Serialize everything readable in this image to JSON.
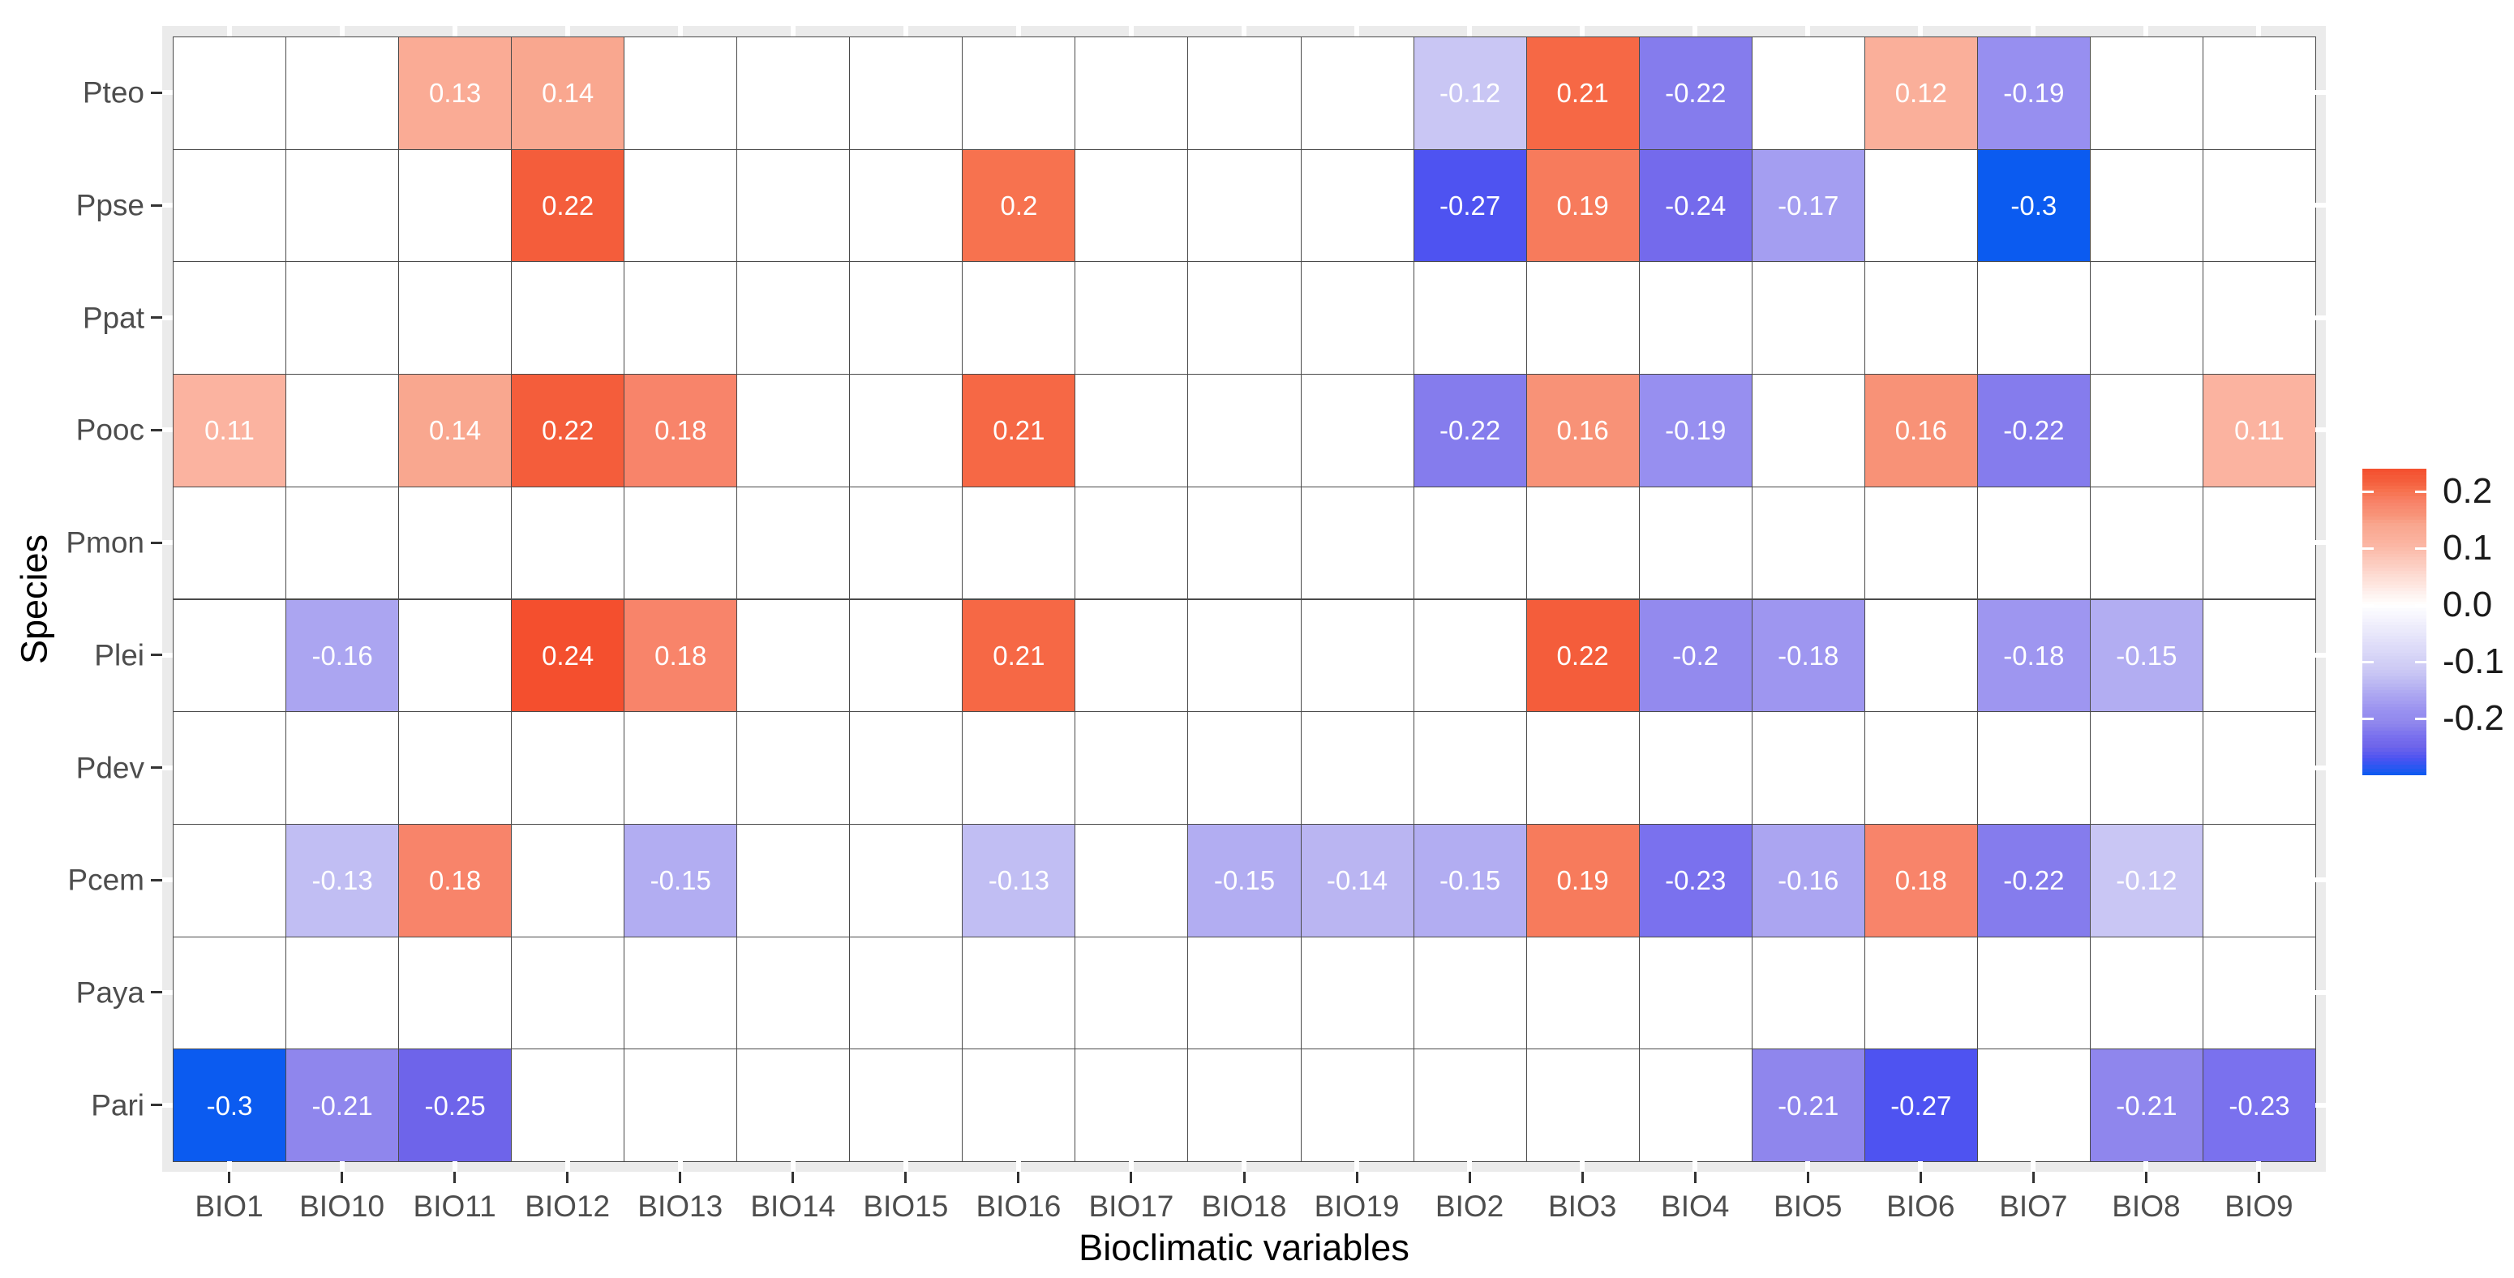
{
  "chart_data": {
    "type": "heatmap",
    "xlabel": "Bioclimatic variables",
    "ylabel": "Species",
    "x_categories": [
      "BIO1",
      "BIO10",
      "BIO11",
      "BIO12",
      "BIO13",
      "BIO14",
      "BIO15",
      "BIO16",
      "BIO17",
      "BIO18",
      "BIO19",
      "BIO2",
      "BIO3",
      "BIO4",
      "BIO5",
      "BIO6",
      "BIO7",
      "BIO8",
      "BIO9"
    ],
    "y_categories": [
      "Pteo",
      "Ppse",
      "Ppat",
      "Pooc",
      "Pmon",
      "Plei",
      "Pdev",
      "Pcem",
      "Paya",
      "Pari"
    ],
    "values": [
      [
        null,
        null,
        0.13,
        0.14,
        null,
        null,
        null,
        null,
        null,
        null,
        null,
        -0.12,
        0.21,
        -0.22,
        null,
        0.12,
        -0.19,
        null,
        null
      ],
      [
        null,
        null,
        null,
        0.22,
        null,
        null,
        null,
        0.2,
        null,
        null,
        null,
        -0.27,
        0.19,
        -0.24,
        -0.17,
        null,
        -0.3,
        null,
        null
      ],
      [
        null,
        null,
        null,
        null,
        null,
        null,
        null,
        null,
        null,
        null,
        null,
        null,
        null,
        null,
        null,
        null,
        null,
        null,
        null
      ],
      [
        0.11,
        null,
        0.14,
        0.22,
        0.18,
        null,
        null,
        0.21,
        null,
        null,
        null,
        -0.22,
        0.16,
        -0.19,
        null,
        0.16,
        -0.22,
        null,
        0.11
      ],
      [
        null,
        null,
        null,
        null,
        null,
        null,
        null,
        null,
        null,
        null,
        null,
        null,
        null,
        null,
        null,
        null,
        null,
        null,
        null
      ],
      [
        null,
        -0.16,
        null,
        0.24,
        0.18,
        null,
        null,
        0.21,
        null,
        null,
        null,
        null,
        0.22,
        -0.2,
        -0.18,
        null,
        -0.18,
        -0.15,
        null
      ],
      [
        null,
        null,
        null,
        null,
        null,
        null,
        null,
        null,
        null,
        null,
        null,
        null,
        null,
        null,
        null,
        null,
        null,
        null,
        null
      ],
      [
        null,
        -0.13,
        0.18,
        null,
        -0.15,
        null,
        null,
        -0.13,
        null,
        -0.15,
        -0.14,
        -0.15,
        0.19,
        -0.23,
        -0.16,
        0.18,
        -0.22,
        -0.12,
        null
      ],
      [
        null,
        null,
        null,
        null,
        null,
        null,
        null,
        null,
        null,
        null,
        null,
        null,
        null,
        null,
        null,
        null,
        null,
        null,
        null
      ],
      [
        -0.3,
        -0.21,
        -0.25,
        null,
        null,
        null,
        null,
        null,
        null,
        null,
        null,
        null,
        null,
        null,
        -0.21,
        -0.27,
        null,
        -0.21,
        -0.23
      ]
    ],
    "color_scale": {
      "domain_min": -0.3,
      "domain_max": 0.24,
      "midpoint_color": "#FFFFFF",
      "low_color": "#0B5BF0",
      "high_color": "#F44F2E",
      "negative_anchors": [
        [
          0.0,
          "#FFFFFF"
        ],
        [
          0.4,
          "#C9C6F4"
        ],
        [
          0.533,
          "#ABA5F1"
        ],
        [
          0.633,
          "#978FF0"
        ],
        [
          0.7,
          "#8F86ED"
        ],
        [
          0.767,
          "#7A71EE"
        ],
        [
          0.833,
          "#6E64EA"
        ],
        [
          0.9,
          "#4E53F1"
        ],
        [
          1.0,
          "#0B5BF0"
        ]
      ],
      "positive_anchors": [
        [
          0.0,
          "#FFFFFF"
        ],
        [
          0.458,
          "#FBB3A0"
        ],
        [
          0.583,
          "#F9A78F"
        ],
        [
          0.667,
          "#F89277"
        ],
        [
          0.75,
          "#F8846A"
        ],
        [
          0.833,
          "#F7724F"
        ],
        [
          0.917,
          "#F45D3B"
        ],
        [
          1.0,
          "#F44F2E"
        ]
      ]
    },
    "legend": {
      "tick_labels": [
        "0.2",
        "0.1",
        "0.0",
        "-0.1",
        "-0.2"
      ],
      "tick_values": [
        0.2,
        0.1,
        0.0,
        -0.1,
        -0.2
      ],
      "top_value": 0.24,
      "bottom_value": -0.3
    },
    "style": {
      "panel_background": "#EBEBEB",
      "grid_line_color": "#FFFFFF",
      "tile_border_color": "#4a4a4a",
      "cell_text_color": "#FFFFFF",
      "empty_cell_color": "#FFFFFF",
      "axis_text_color": "#4d4d4d"
    }
  }
}
